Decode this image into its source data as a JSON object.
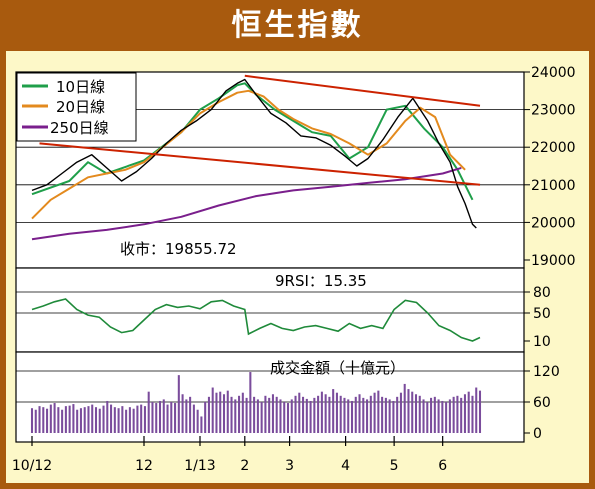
{
  "title": "恒生指數",
  "chart_data": [
    {
      "type": "line",
      "panel": "price",
      "ylim": [
        19000,
        24000
      ],
      "y_ticks": [
        "24000",
        "23000",
        "22000",
        "21000",
        "20000",
        "19000"
      ],
      "legend": [
        "10日線",
        "20日線",
        "250日線"
      ],
      "legend_placement": "top-left",
      "annotation": "收市：19855.72",
      "x_tick_labels": [
        "10/12",
        "12",
        "1/13",
        "2",
        "3",
        "4",
        "5",
        "6"
      ],
      "x_index_range": [
        0,
        120
      ],
      "x_tick_index": [
        0,
        30,
        45,
        57,
        69,
        84,
        97,
        110
      ],
      "series": [
        {
          "name": "10日線",
          "color": "#1f9f4a",
          "x": [
            0,
            10,
            15,
            20,
            30,
            40,
            45,
            50,
            55,
            57,
            60,
            65,
            70,
            75,
            80,
            85,
            90,
            95,
            100,
            105,
            110,
            114,
            118
          ],
          "y": [
            20750,
            21100,
            21600,
            21300,
            21650,
            22400,
            23000,
            23300,
            23650,
            23700,
            23400,
            23000,
            22700,
            22400,
            22300,
            21700,
            22000,
            23000,
            23100,
            22500,
            22000,
            21400,
            20600
          ]
        },
        {
          "name": "20日線",
          "color": "#e38a1e",
          "x": [
            0,
            5,
            10,
            15,
            20,
            25,
            30,
            35,
            40,
            45,
            50,
            55,
            58,
            62,
            66,
            70,
            75,
            80,
            85,
            90,
            95,
            100,
            104,
            108,
            112,
            116
          ],
          "y": [
            20100,
            20600,
            20900,
            21200,
            21300,
            21400,
            21600,
            22000,
            22400,
            22900,
            23200,
            23450,
            23500,
            23350,
            23000,
            22750,
            22500,
            22350,
            22100,
            21800,
            22100,
            22700,
            23050,
            22800,
            21800,
            21400
          ]
        },
        {
          "name": "250日線",
          "color": "#7a1f8c",
          "x": [
            0,
            10,
            20,
            30,
            40,
            50,
            60,
            70,
            80,
            90,
            100,
            110,
            115
          ],
          "y": [
            19550,
            19700,
            19800,
            19950,
            20150,
            20450,
            20700,
            20850,
            20950,
            21050,
            21150,
            21300,
            21450
          ]
        },
        {
          "name": "",
          "color": "#000000",
          "role": "daily closes",
          "x": [
            0,
            4,
            8,
            12,
            16,
            20,
            24,
            28,
            32,
            36,
            40,
            44,
            48,
            52,
            55,
            57,
            60,
            64,
            68,
            72,
            76,
            80,
            84,
            87,
            90,
            94,
            98,
            102,
            106,
            109,
            112,
            114,
            116,
            118,
            119
          ],
          "y": [
            20850,
            21000,
            21300,
            21600,
            21800,
            21450,
            21100,
            21350,
            21700,
            22100,
            22450,
            22700,
            23000,
            23500,
            23700,
            23800,
            23400,
            22900,
            22650,
            22300,
            22250,
            22050,
            21750,
            21500,
            21700,
            22200,
            22800,
            23300,
            22700,
            22100,
            21600,
            20950,
            20500,
            19950,
            19850
          ]
        },
        {
          "name": "",
          "color": "#cc2200",
          "role": "upper trendline",
          "x": [
            57,
            120
          ],
          "y": [
            23900,
            23100
          ]
        },
        {
          "name": "",
          "color": "#cc2200",
          "role": "lower trendline",
          "x": [
            2,
            120
          ],
          "y": [
            22100,
            21000
          ]
        }
      ]
    },
    {
      "type": "line",
      "panel": "rsi",
      "annotation": "9RSI：15.35",
      "ylim": [
        0,
        100
      ],
      "y_ticks": [
        "80",
        "50",
        "10"
      ],
      "series": [
        {
          "name": "",
          "color": "#1f8a3a",
          "x": [
            0,
            3,
            6,
            9,
            12,
            15,
            18,
            21,
            24,
            27,
            30,
            33,
            36,
            39,
            42,
            45,
            48,
            51,
            54,
            57,
            58,
            61,
            64,
            67,
            70,
            73,
            76,
            79,
            82,
            85,
            88,
            91,
            94,
            97,
            100,
            103,
            106,
            109,
            112,
            115,
            118,
            120
          ],
          "y": [
            55,
            60,
            66,
            70,
            55,
            47,
            44,
            30,
            22,
            25,
            40,
            55,
            62,
            58,
            60,
            56,
            66,
            68,
            60,
            55,
            20,
            28,
            35,
            28,
            25,
            30,
            32,
            28,
            24,
            35,
            28,
            32,
            28,
            55,
            68,
            65,
            50,
            32,
            25,
            15,
            10,
            15
          ]
        }
      ]
    },
    {
      "type": "bar",
      "panel": "turnover",
      "annotation": "成交金額（十億元）",
      "ylim": [
        0,
        130
      ],
      "y_ticks": [
        "120",
        "60",
        "0"
      ],
      "x_index_range": [
        0,
        120
      ],
      "series": [
        {
          "name": "",
          "color": "#7a4c9c",
          "values": [
            48,
            45,
            52,
            50,
            47,
            55,
            58,
            50,
            45,
            52,
            53,
            56,
            45,
            48,
            50,
            52,
            55,
            50,
            47,
            53,
            62,
            55,
            50,
            48,
            52,
            45,
            50,
            47,
            53,
            55,
            52,
            80,
            60,
            58,
            62,
            65,
            55,
            60,
            58,
            112,
            75,
            65,
            70,
            55,
            45,
            32,
            60,
            70,
            88,
            78,
            80,
            75,
            82,
            70,
            65,
            72,
            78,
            68,
            118,
            70,
            65,
            60,
            72,
            68,
            75,
            70,
            65,
            60,
            58,
            65,
            72,
            78,
            70,
            66,
            62,
            68,
            72,
            80,
            75,
            70,
            85,
            78,
            72,
            68,
            65,
            62,
            70,
            75,
            68,
            65,
            72,
            78,
            82,
            70,
            68,
            65,
            62,
            70,
            78,
            95,
            85,
            80,
            75,
            72,
            65,
            60,
            68,
            70,
            65,
            62,
            60,
            65,
            70,
            72,
            68,
            75,
            80,
            72,
            88,
            82
          ]
        }
      ]
    }
  ]
}
